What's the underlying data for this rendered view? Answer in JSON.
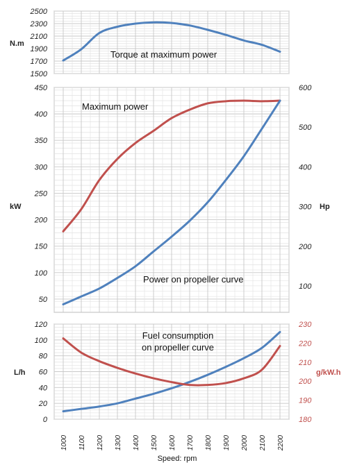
{
  "colors": {
    "blue": "#4f81bd",
    "red": "#c0504d",
    "grid": "#c8c8c8"
  },
  "chart_data": [
    {
      "type": "line",
      "title": "",
      "ylabel": "N.m",
      "ylim": [
        1500,
        2500
      ],
      "yticks": [
        1500,
        1700,
        1900,
        2100,
        2300,
        2500
      ],
      "annotation": "Torque at maximum power",
      "grid": true,
      "series": [
        {
          "color": "#4f81bd",
          "axis": "left",
          "x": [
            1000,
            1100,
            1200,
            1300,
            1400,
            1500,
            1600,
            1700,
            1800,
            1900,
            2000,
            2100,
            2200
          ],
          "values": [
            1710,
            1890,
            2150,
            2250,
            2300,
            2320,
            2310,
            2270,
            2200,
            2120,
            2030,
            1960,
            1850
          ]
        }
      ]
    },
    {
      "type": "line",
      "title": "",
      "ylabel": "kW",
      "ylim": [
        25,
        450
      ],
      "yticks": [
        50,
        100,
        150,
        200,
        250,
        300,
        350,
        400,
        450
      ],
      "y2label": "Hp",
      "y2lim": [
        33.5,
        600
      ],
      "y2ticks": [
        100,
        200,
        300,
        400,
        500,
        600
      ],
      "annotations": [
        "Maximum power",
        "Power on propeller curve"
      ],
      "grid": true,
      "series": [
        {
          "color": "#c0504d",
          "axis": "left",
          "x": [
            1000,
            1100,
            1200,
            1300,
            1400,
            1500,
            1600,
            1700,
            1800,
            1900,
            2000,
            2100,
            2200
          ],
          "values": [
            178,
            220,
            275,
            315,
            345,
            368,
            392,
            408,
            420,
            424,
            425,
            424,
            425
          ]
        },
        {
          "color": "#4f81bd",
          "axis": "left",
          "x": [
            1000,
            1100,
            1200,
            1300,
            1400,
            1500,
            1600,
            1700,
            1800,
            1900,
            2000,
            2100,
            2200
          ],
          "values": [
            40,
            55,
            70,
            90,
            112,
            140,
            168,
            198,
            233,
            275,
            320,
            372,
            425
          ]
        }
      ]
    },
    {
      "type": "line",
      "title": "",
      "xlabel": "Speed: rpm",
      "ylabel": "L/h",
      "ylim": [
        0,
        120
      ],
      "yticks": [
        0,
        20,
        40,
        60,
        80,
        100,
        120
      ],
      "y2label": "g/kW.h",
      "y2lim": [
        180,
        230
      ],
      "y2ticks": [
        180,
        190,
        200,
        210,
        220,
        230
      ],
      "categories": [
        "1000",
        "1100",
        "1200",
        "1300",
        "1400",
        "1500",
        "1600",
        "1700",
        "1800",
        "1900",
        "2000",
        "2100",
        "2200"
      ],
      "annotation_line1": "Fuel consumption",
      "annotation_line2": "on propeller curve",
      "grid": true,
      "series": [
        {
          "color": "#4f81bd",
          "axis": "left",
          "x": [
            1000,
            1100,
            1200,
            1300,
            1400,
            1500,
            1600,
            1700,
            1800,
            1900,
            2000,
            2100,
            2200
          ],
          "values": [
            10,
            13,
            16,
            20,
            26,
            32,
            39,
            47,
            56,
            66,
            77,
            90,
            110
          ]
        },
        {
          "color": "#c0504d",
          "axis": "right",
          "x": [
            1000,
            1100,
            1200,
            1300,
            1400,
            1500,
            1600,
            1700,
            1800,
            1900,
            2000,
            2100,
            2200
          ],
          "values": [
            222.5,
            215,
            210.5,
            207,
            204,
            201.5,
            199.5,
            198,
            198,
            199,
            201.5,
            206,
            218.5
          ]
        }
      ]
    }
  ]
}
